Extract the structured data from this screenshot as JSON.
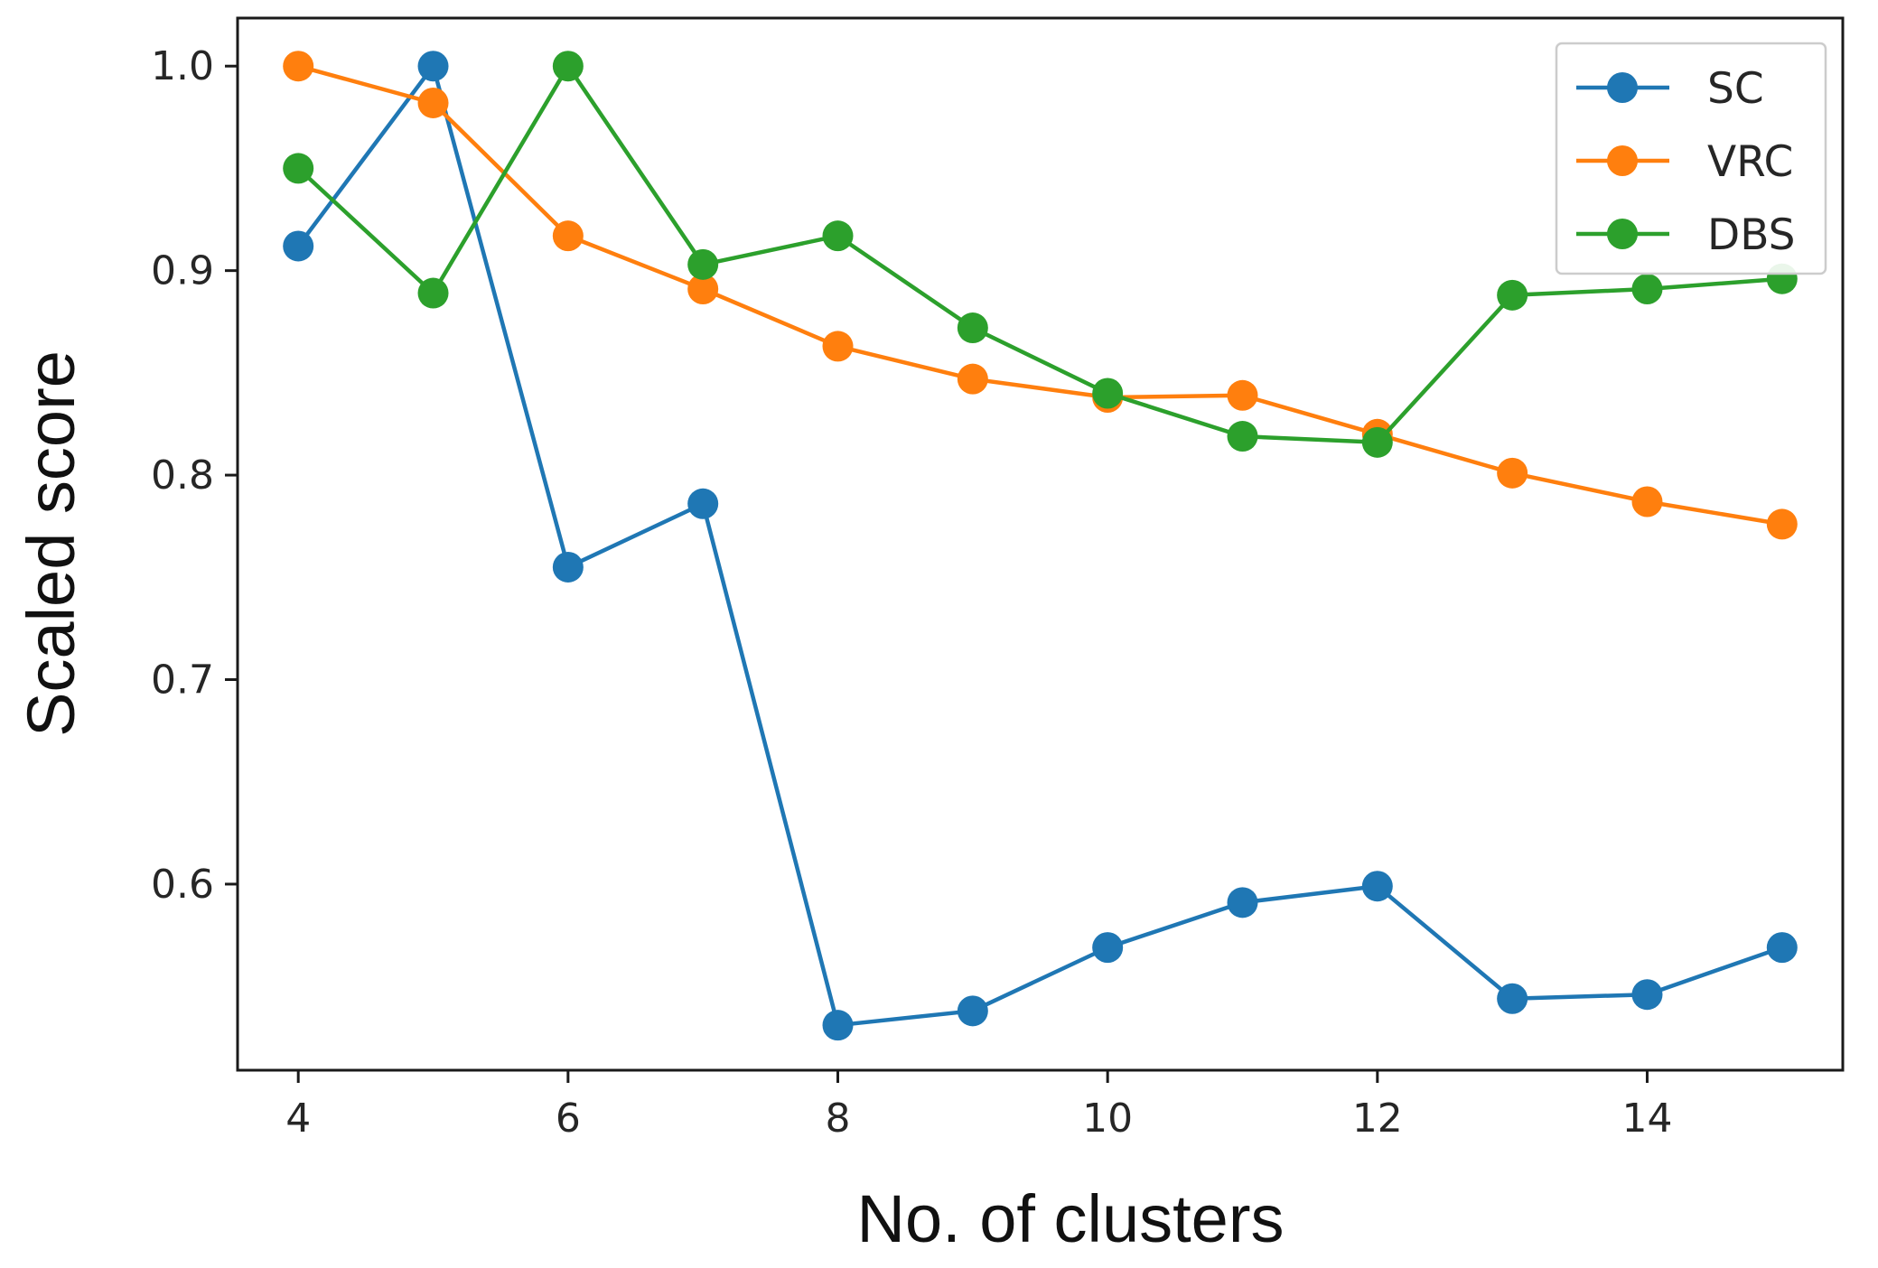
{
  "chart_data": {
    "type": "line",
    "title": "",
    "xlabel": "No. of clusters",
    "ylabel": "Scaled score",
    "xlim": [
      3.55,
      15.45
    ],
    "ylim": [
      0.509,
      1.0235
    ],
    "xticks": [
      4,
      6,
      8,
      10,
      12,
      14
    ],
    "yticks": [
      0.6,
      0.7,
      0.8,
      0.9,
      1.0
    ],
    "ytick_labels": [
      "0.6",
      "0.7",
      "0.8",
      "0.9",
      "1.0"
    ],
    "grid": false,
    "legend_position": "top-right",
    "x": [
      4,
      5,
      6,
      7,
      8,
      9,
      10,
      11,
      12,
      13,
      14,
      15
    ],
    "series": [
      {
        "name": "SC",
        "color": "#1f77b4",
        "values": [
          0.912,
          1.0,
          0.755,
          0.786,
          0.531,
          0.538,
          0.569,
          0.591,
          0.599,
          0.544,
          0.546,
          0.569
        ]
      },
      {
        "name": "VRC",
        "color": "#ff7f0e",
        "values": [
          1.0,
          0.982,
          0.917,
          0.891,
          0.863,
          0.847,
          0.838,
          0.839,
          0.82,
          0.801,
          0.787,
          0.776
        ]
      },
      {
        "name": "DBS",
        "color": "#2ca02c",
        "values": [
          0.95,
          0.889,
          1.0,
          0.903,
          0.917,
          0.872,
          0.84,
          0.819,
          0.816,
          0.888,
          0.891,
          0.896
        ]
      }
    ]
  }
}
